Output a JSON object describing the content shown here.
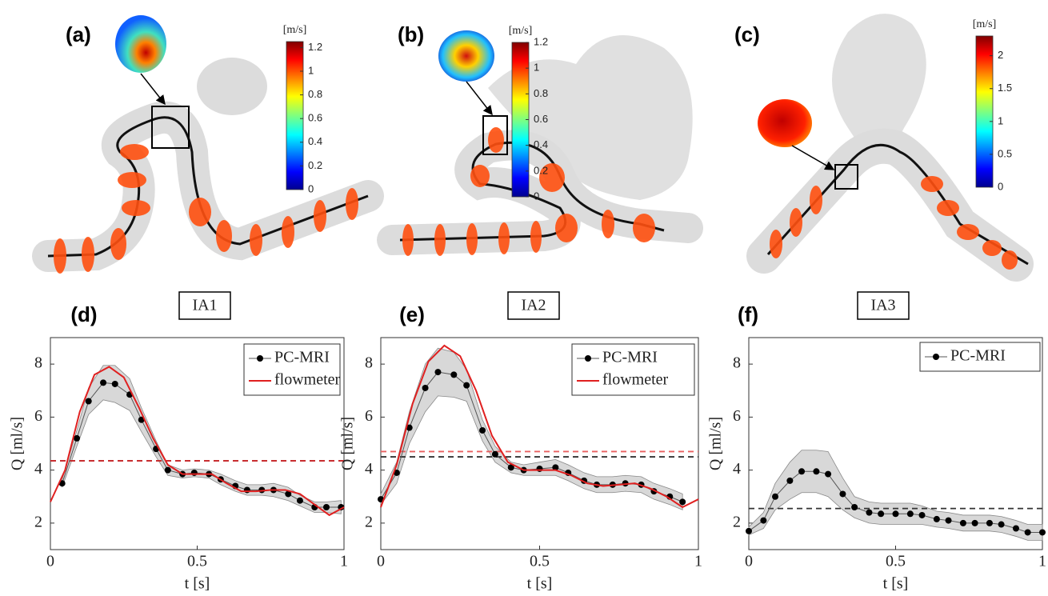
{
  "panels": [
    {
      "label": "(a)",
      "caption": "IA1",
      "colorbar": {
        "unit": "[m/s]",
        "lim": [
          0,
          1.25
        ],
        "ticks": [
          0,
          0.2,
          0.4,
          0.6,
          0.8,
          1,
          1.2
        ]
      }
    },
    {
      "label": "(b)",
      "caption": "IA2",
      "colorbar": {
        "unit": "[m/s]",
        "lim": [
          0,
          1.2
        ],
        "ticks": [
          0,
          0.2,
          0.4,
          0.6,
          0.8,
          1,
          1.2
        ]
      }
    },
    {
      "label": "(c)",
      "caption": "IA3",
      "colorbar": {
        "unit": "[m/s]",
        "lim": [
          0,
          2.3
        ],
        "ticks": [
          0,
          0.5,
          1,
          1.5,
          2
        ]
      }
    }
  ],
  "chart_data": [
    {
      "type": "line",
      "panel": "(d)",
      "x_label": "t [s]",
      "y_label": "Q [ml/s]",
      "xlim": [
        0,
        1
      ],
      "xticks": [
        0,
        0.5,
        1
      ],
      "ylim": [
        1,
        9
      ],
      "yticks": [
        2,
        4,
        6,
        8
      ],
      "series": [
        {
          "name": "PC-MRI",
          "color": "#000000",
          "x": [
            0.04,
            0.09,
            0.13,
            0.18,
            0.22,
            0.27,
            0.31,
            0.36,
            0.4,
            0.45,
            0.49,
            0.54,
            0.58,
            0.63,
            0.67,
            0.72,
            0.76,
            0.81,
            0.85,
            0.9,
            0.94,
            0.99
          ],
          "values": [
            3.5,
            5.2,
            6.6,
            7.3,
            7.25,
            6.85,
            5.9,
            4.8,
            4.0,
            3.85,
            3.9,
            3.85,
            3.65,
            3.4,
            3.25,
            3.25,
            3.25,
            3.1,
            2.85,
            2.6,
            2.6,
            2.6
          ],
          "errors": [
            0.15,
            0.3,
            0.5,
            0.65,
            0.7,
            0.6,
            0.45,
            0.3,
            0.2,
            0.15,
            0.15,
            0.15,
            0.2,
            0.2,
            0.2,
            0.2,
            0.25,
            0.25,
            0.2,
            0.2,
            0.2,
            0.25
          ]
        },
        {
          "name": "flowmeter",
          "color": "#e02020",
          "x": [
            0,
            0.05,
            0.1,
            0.15,
            0.2,
            0.25,
            0.3,
            0.35,
            0.4,
            0.45,
            0.5,
            0.55,
            0.6,
            0.65,
            0.7,
            0.75,
            0.8,
            0.85,
            0.9,
            0.95,
            1
          ],
          "values": [
            2.8,
            4.0,
            6.2,
            7.6,
            7.9,
            7.5,
            6.4,
            5.2,
            4.2,
            3.85,
            3.85,
            3.85,
            3.5,
            3.2,
            3.2,
            3.25,
            3.25,
            3.1,
            2.7,
            2.3,
            2.6
          ]
        }
      ],
      "hlines": [
        {
          "value": 4.35,
          "color": "#333333"
        },
        {
          "value": 4.35,
          "color": "#d62728"
        }
      ]
    },
    {
      "type": "line",
      "panel": "(e)",
      "x_label": "t [s]",
      "y_label": "Q [ml/s]",
      "xlim": [
        0,
        1
      ],
      "xticks": [
        0,
        0.5,
        1
      ],
      "ylim": [
        1,
        9
      ],
      "yticks": [
        2,
        4,
        6,
        8
      ],
      "series": [
        {
          "name": "PC-MRI",
          "color": "#000000",
          "x": [
            0,
            0.05,
            0.09,
            0.14,
            0.18,
            0.23,
            0.27,
            0.32,
            0.36,
            0.41,
            0.45,
            0.5,
            0.55,
            0.59,
            0.64,
            0.68,
            0.73,
            0.77,
            0.82,
            0.86,
            0.91,
            0.95
          ],
          "values": [
            2.9,
            3.9,
            5.6,
            7.1,
            7.7,
            7.6,
            7.2,
            5.5,
            4.6,
            4.1,
            4.0,
            4.05,
            4.1,
            3.9,
            3.6,
            3.45,
            3.45,
            3.5,
            3.45,
            3.2,
            3.0,
            2.8
          ],
          "errors": [
            0.2,
            0.4,
            0.6,
            0.9,
            0.9,
            0.85,
            0.6,
            0.4,
            0.3,
            0.2,
            0.2,
            0.25,
            0.3,
            0.3,
            0.3,
            0.3,
            0.3,
            0.3,
            0.3,
            0.3,
            0.3,
            0.3
          ]
        },
        {
          "name": "flowmeter",
          "color": "#e02020",
          "x": [
            0,
            0.05,
            0.1,
            0.15,
            0.2,
            0.25,
            0.3,
            0.35,
            0.4,
            0.45,
            0.5,
            0.55,
            0.6,
            0.65,
            0.7,
            0.75,
            0.8,
            0.85,
            0.9,
            0.95,
            1
          ],
          "values": [
            2.6,
            4.2,
            6.5,
            8.1,
            8.7,
            8.3,
            7.0,
            5.3,
            4.3,
            4.0,
            4.0,
            4.0,
            3.8,
            3.5,
            3.4,
            3.45,
            3.5,
            3.3,
            3.0,
            2.6,
            2.9
          ]
        }
      ],
      "hlines": [
        {
          "value": 4.5,
          "color": "#333333"
        },
        {
          "value": 4.7,
          "color": "#e86060"
        }
      ]
    },
    {
      "type": "line",
      "panel": "(f)",
      "x_label": "t [s]",
      "y_label": "Q [ml/s]",
      "xlim": [
        0,
        1
      ],
      "xticks": [
        0,
        0.5,
        1
      ],
      "ylim": [
        1,
        9
      ],
      "yticks": [
        2,
        4,
        6,
        8
      ],
      "series": [
        {
          "name": "PC-MRI",
          "color": "#000000",
          "x": [
            0,
            0.05,
            0.09,
            0.14,
            0.18,
            0.23,
            0.27,
            0.32,
            0.36,
            0.41,
            0.45,
            0.5,
            0.55,
            0.59,
            0.64,
            0.68,
            0.73,
            0.77,
            0.82,
            0.86,
            0.91,
            0.95,
            1
          ],
          "values": [
            1.7,
            2.1,
            3.0,
            3.6,
            3.95,
            3.95,
            3.85,
            3.1,
            2.6,
            2.4,
            2.35,
            2.35,
            2.35,
            2.3,
            2.15,
            2.1,
            2.0,
            2.0,
            2.0,
            1.95,
            1.8,
            1.65,
            1.65
          ],
          "errors": [
            0.15,
            0.3,
            0.5,
            0.7,
            0.8,
            0.8,
            0.85,
            0.6,
            0.4,
            0.4,
            0.4,
            0.4,
            0.4,
            0.35,
            0.3,
            0.3,
            0.3,
            0.3,
            0.3,
            0.3,
            0.3,
            0.3,
            0.3
          ]
        }
      ],
      "hlines": [
        {
          "value": 2.55,
          "color": "#333333"
        }
      ]
    }
  ]
}
